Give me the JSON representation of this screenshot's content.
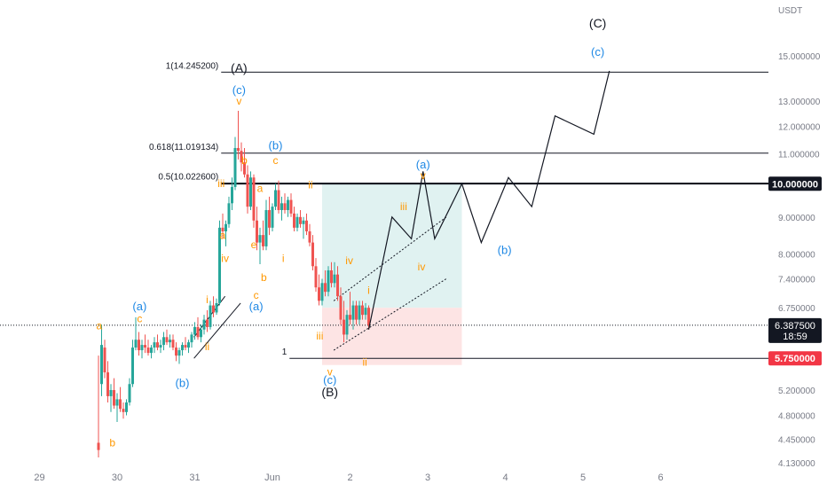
{
  "chart_data": {
    "type": "candlestick",
    "currency": "USDT",
    "x_ticks": [
      "5",
      "29",
      "30",
      "31",
      "Jun",
      "2",
      "3",
      "4",
      "5",
      "6"
    ],
    "y_ticks": [
      "15.000000",
      "13.000000",
      "12.000000",
      "11.000000",
      "9.000000",
      "8.000000",
      "7.400000",
      "6.750000",
      "5.200000",
      "4.800000",
      "4.450000",
      "4.130000"
    ],
    "current_price": "6.387500",
    "countdown": "18:59",
    "level_10": "10.000000",
    "stop_level": "5.750000",
    "fib_levels": [
      {
        "label": "1(14.245200)",
        "price": 14.2452
      },
      {
        "label": "0.618(11.019134)",
        "price": 11.019134
      },
      {
        "label": "0.5(10.022600)",
        "price": 10.0226
      },
      {
        "label": "1",
        "price": 5.75
      }
    ],
    "colors": {
      "up": "#26a69a",
      "down": "#ef5350",
      "orange": "#ff9800",
      "blue": "#1e88e5",
      "tp_zone": "#e0f2f1",
      "sl_zone": "#fde4e4",
      "badge_dark": "#131722",
      "badge_red": "#f23645"
    },
    "candles": [
      [
        28.72,
        4.4,
        5.8,
        4.2,
        4.3
      ],
      [
        28.76,
        5.3,
        6.4,
        5.1,
        6.0
      ],
      [
        28.8,
        5.95,
        6.1,
        5.4,
        5.5
      ],
      [
        28.84,
        5.5,
        5.7,
        5.0,
        5.1
      ],
      [
        28.88,
        5.1,
        5.3,
        4.85,
        5.2
      ],
      [
        28.92,
        5.2,
        5.4,
        4.9,
        4.95
      ],
      [
        28.96,
        4.95,
        5.15,
        4.7,
        5.05
      ],
      [
        29.0,
        5.05,
        5.25,
        4.85,
        4.9
      ],
      [
        29.04,
        4.9,
        5.0,
        4.75,
        4.85
      ],
      [
        29.08,
        4.85,
        5.05,
        4.8,
        5.0
      ],
      [
        29.12,
        5.0,
        5.4,
        4.95,
        5.3
      ],
      [
        29.16,
        5.3,
        6.1,
        5.25,
        5.95
      ],
      [
        29.2,
        5.95,
        6.55,
        5.9,
        6.1
      ],
      [
        29.24,
        6.1,
        6.25,
        5.8,
        5.9
      ],
      [
        29.28,
        5.9,
        6.1,
        5.75,
        6.0
      ],
      [
        29.32,
        6.0,
        6.2,
        5.85,
        5.95
      ],
      [
        29.36,
        5.95,
        6.1,
        5.8,
        5.85
      ],
      [
        29.4,
        5.85,
        6.0,
        5.75,
        5.95
      ],
      [
        29.44,
        5.95,
        6.15,
        5.85,
        6.05
      ],
      [
        29.48,
        6.05,
        6.2,
        5.9,
        5.95
      ],
      [
        29.52,
        5.95,
        6.1,
        5.85,
        6.0
      ],
      [
        29.56,
        6.0,
        6.25,
        5.9,
        6.15
      ],
      [
        29.6,
        6.15,
        6.3,
        6.0,
        6.05
      ],
      [
        29.64,
        6.05,
        6.2,
        5.95,
        6.1
      ],
      [
        29.68,
        6.1,
        6.2,
        5.9,
        5.95
      ],
      [
        29.72,
        5.95,
        6.05,
        5.7,
        5.8
      ],
      [
        29.76,
        5.8,
        5.95,
        5.65,
        5.9
      ],
      [
        29.8,
        5.9,
        6.05,
        5.8,
        6.0
      ],
      [
        29.84,
        6.0,
        6.15,
        5.9,
        5.95
      ],
      [
        29.88,
        5.95,
        6.1,
        5.85,
        6.05
      ],
      [
        29.92,
        6.05,
        6.25,
        5.95,
        6.2
      ],
      [
        29.96,
        6.2,
        6.45,
        6.1,
        6.35
      ],
      [
        30.0,
        6.35,
        6.55,
        6.1,
        6.15
      ],
      [
        30.04,
        6.15,
        6.4,
        6.05,
        6.3
      ],
      [
        30.08,
        6.3,
        6.6,
        6.2,
        6.5
      ],
      [
        30.12,
        6.5,
        6.7,
        6.25,
        6.35
      ],
      [
        30.16,
        6.35,
        6.9,
        6.3,
        6.8
      ],
      [
        30.2,
        6.8,
        7.0,
        6.55,
        6.65
      ],
      [
        30.24,
        6.65,
        6.95,
        6.6,
        6.85
      ],
      [
        30.28,
        6.85,
        8.9,
        6.8,
        8.7
      ],
      [
        30.32,
        8.7,
        9.1,
        8.4,
        8.6
      ],
      [
        30.36,
        8.6,
        8.9,
        8.2,
        8.8
      ],
      [
        30.4,
        8.8,
        9.6,
        8.7,
        9.4
      ],
      [
        30.44,
        9.4,
        10.2,
        9.2,
        9.9
      ],
      [
        30.48,
        9.9,
        11.6,
        9.8,
        11.2
      ],
      [
        30.52,
        11.2,
        12.6,
        10.8,
        11.1
      ],
      [
        30.56,
        11.1,
        11.4,
        10.4,
        10.7
      ],
      [
        30.6,
        10.7,
        11.2,
        10.2,
        10.3
      ],
      [
        30.64,
        10.3,
        10.6,
        9.1,
        9.3
      ],
      [
        30.68,
        9.3,
        10.4,
        9.2,
        10.2
      ],
      [
        30.72,
        10.2,
        10.3,
        8.7,
        8.9
      ],
      [
        30.76,
        8.9,
        9.3,
        8.1,
        8.3
      ],
      [
        30.8,
        8.3,
        8.7,
        7.75,
        8.5
      ],
      [
        30.84,
        8.5,
        8.9,
        8.1,
        8.2
      ],
      [
        30.88,
        8.2,
        9.5,
        8.1,
        9.2
      ],
      [
        30.92,
        9.2,
        9.6,
        8.5,
        8.7
      ],
      [
        30.96,
        8.7,
        9.4,
        8.6,
        9.3
      ],
      [
        31.0,
        9.3,
        10.0,
        9.2,
        9.8
      ],
      [
        31.04,
        9.8,
        10.1,
        9.1,
        9.2
      ],
      [
        31.08,
        9.2,
        9.6,
        8.9,
        9.4
      ],
      [
        31.12,
        9.4,
        9.7,
        9.1,
        9.2
      ],
      [
        31.16,
        9.2,
        9.6,
        9.0,
        9.5
      ],
      [
        31.2,
        9.5,
        9.7,
        9.0,
        9.1
      ],
      [
        31.24,
        9.1,
        9.3,
        8.6,
        8.7
      ],
      [
        31.28,
        8.7,
        9.1,
        8.6,
        9.0
      ],
      [
        31.32,
        9.0,
        9.2,
        8.7,
        8.8
      ],
      [
        31.36,
        8.8,
        9.0,
        8.4,
        8.9
      ],
      [
        31.4,
        8.9,
        9.1,
        8.5,
        8.6
      ],
      [
        31.44,
        8.6,
        8.8,
        8.2,
        8.3
      ],
      [
        31.48,
        8.3,
        8.5,
        7.6,
        7.7
      ],
      [
        31.52,
        7.7,
        7.9,
        7.1,
        7.2
      ],
      [
        31.56,
        7.2,
        7.5,
        6.8,
        6.9
      ],
      [
        31.6,
        6.9,
        7.4,
        6.8,
        7.3
      ],
      [
        31.64,
        7.3,
        7.6,
        7.0,
        7.1
      ],
      [
        31.68,
        7.1,
        7.7,
        7.0,
        7.6
      ],
      [
        31.72,
        7.6,
        7.8,
        7.2,
        7.3
      ],
      [
        31.76,
        7.3,
        7.8,
        7.2,
        7.5
      ],
      [
        31.8,
        7.5,
        7.7,
        6.9,
        7.0
      ],
      [
        31.84,
        7.0,
        7.2,
        6.4,
        6.5
      ],
      [
        31.88,
        6.5,
        6.9,
        6.05,
        6.2
      ],
      [
        31.92,
        6.2,
        6.7,
        6.1,
        6.6
      ],
      [
        31.96,
        6.6,
        7.1,
        6.4,
        6.5
      ],
      [
        32.0,
        6.5,
        6.9,
        6.3,
        6.8
      ],
      [
        32.04,
        6.8,
        6.9,
        6.4,
        6.5
      ],
      [
        32.08,
        6.5,
        6.9,
        6.4,
        6.8
      ],
      [
        32.12,
        6.8,
        6.9,
        6.5,
        6.6
      ],
      [
        32.16,
        6.6,
        6.85,
        6.5,
        6.75
      ],
      [
        32.2,
        6.75,
        6.8,
        6.3,
        6.39
      ]
    ],
    "forecast_path": [
      [
        32.2,
        6.3
      ],
      [
        32.5,
        9.0
      ],
      [
        32.75,
        8.4
      ],
      [
        32.9,
        10.4
      ],
      [
        33.05,
        8.4
      ],
      [
        33.4,
        10.0
      ],
      [
        33.65,
        8.3
      ],
      [
        34.0,
        10.2
      ],
      [
        34.3,
        9.3
      ],
      [
        34.6,
        12.4
      ],
      [
        35.1,
        11.7
      ],
      [
        35.3,
        14.3
      ]
    ],
    "wave_labels": [
      {
        "text": "(C)",
        "t": 35.15,
        "p": 16.4,
        "color": "#131722",
        "size": 14
      },
      {
        "text": "(c)",
        "t": 35.15,
        "p": 15.0,
        "color": "#1e88e5",
        "size": 13
      },
      {
        "text": "(A)",
        "t": 30.53,
        "p": 14.25,
        "color": "#131722",
        "size": 14
      },
      {
        "text": "(c)",
        "t": 30.53,
        "p": 13.3,
        "color": "#1e88e5",
        "size": 13
      },
      {
        "text": "v",
        "t": 30.53,
        "p": 12.85,
        "color": "#ff9800",
        "size": 12
      },
      {
        "text": "(b)",
        "t": 31.0,
        "p": 11.15,
        "color": "#1e88e5",
        "size": 13
      },
      {
        "text": "c",
        "t": 31.0,
        "p": 10.65,
        "color": "#ff9800",
        "size": 12
      },
      {
        "text": "b",
        "t": 30.6,
        "p": 10.65,
        "color": "#ff9800",
        "size": 12
      },
      {
        "text": "iii",
        "t": 30.3,
        "p": 9.9,
        "color": "#ff9800",
        "size": 12
      },
      {
        "text": "a",
        "t": 30.8,
        "p": 9.75,
        "color": "#ff9800",
        "size": 12
      },
      {
        "text": "ii",
        "t": 31.45,
        "p": 9.85,
        "color": "#ff9800",
        "size": 12
      },
      {
        "text": "a",
        "t": 30.32,
        "p": 8.4,
        "color": "#ff9800",
        "size": 12
      },
      {
        "text": "e",
        "t": 30.72,
        "p": 8.15,
        "color": "#ff9800",
        "size": 12
      },
      {
        "text": "iv",
        "t": 30.35,
        "p": 7.8,
        "color": "#ff9800",
        "size": 12
      },
      {
        "text": "i",
        "t": 31.1,
        "p": 7.8,
        "color": "#ff9800",
        "size": 12
      },
      {
        "text": "b",
        "t": 30.85,
        "p": 7.35,
        "color": "#ff9800",
        "size": 12
      },
      {
        "text": "c",
        "t": 30.75,
        "p": 6.95,
        "color": "#ff9800",
        "size": 12
      },
      {
        "text": "(a)",
        "t": 30.75,
        "p": 6.7,
        "color": "#1e88e5",
        "size": 13
      },
      {
        "text": "i",
        "t": 30.12,
        "p": 6.85,
        "color": "#ff9800",
        "size": 12
      },
      {
        "text": "iv",
        "t": 31.95,
        "p": 7.75,
        "color": "#ff9800",
        "size": 12
      },
      {
        "text": "i",
        "t": 32.2,
        "p": 7.05,
        "color": "#ff9800",
        "size": 12
      },
      {
        "text": "iii",
        "t": 32.65,
        "p": 9.2,
        "color": "#ff9800",
        "size": 12
      },
      {
        "text": "(a)",
        "t": 32.9,
        "p": 10.5,
        "color": "#1e88e5",
        "size": 13
      },
      {
        "text": "v",
        "t": 32.9,
        "p": 10.15,
        "color": "#ff9800",
        "size": 12
      },
      {
        "text": "iv",
        "t": 32.88,
        "p": 7.6,
        "color": "#ff9800",
        "size": 12
      },
      {
        "text": "(b)",
        "t": 33.95,
        "p": 8.0,
        "color": "#1e88e5",
        "size": 13
      },
      {
        "text": "(a)",
        "t": 29.25,
        "p": 6.7,
        "color": "#1e88e5",
        "size": 13
      },
      {
        "text": "c",
        "t": 29.25,
        "p": 6.45,
        "color": "#ff9800",
        "size": 12
      },
      {
        "text": "a",
        "t": 28.73,
        "p": 6.3,
        "color": "#ff9800",
        "size": 12
      },
      {
        "text": "(b)",
        "t": 29.8,
        "p": 5.25,
        "color": "#1e88e5",
        "size": 13
      },
      {
        "text": "ii",
        "t": 30.12,
        "p": 5.9,
        "color": "#ff9800",
        "size": 12
      },
      {
        "text": "b",
        "t": 28.9,
        "p": 4.35,
        "color": "#ff9800",
        "size": 12
      },
      {
        "text": "iii",
        "t": 31.57,
        "p": 6.1,
        "color": "#ff9800",
        "size": 12
      },
      {
        "text": "v",
        "t": 31.7,
        "p": 5.45,
        "color": "#ff9800",
        "size": 12
      },
      {
        "text": "(c)",
        "t": 31.7,
        "p": 5.3,
        "color": "#1e88e5",
        "size": 13
      },
      {
        "text": "(B)",
        "t": 31.7,
        "p": 5.1,
        "color": "#131722",
        "size": 14
      },
      {
        "text": "ii",
        "t": 32.15,
        "p": 5.62,
        "color": "#ff9800",
        "size": 12
      }
    ]
  }
}
